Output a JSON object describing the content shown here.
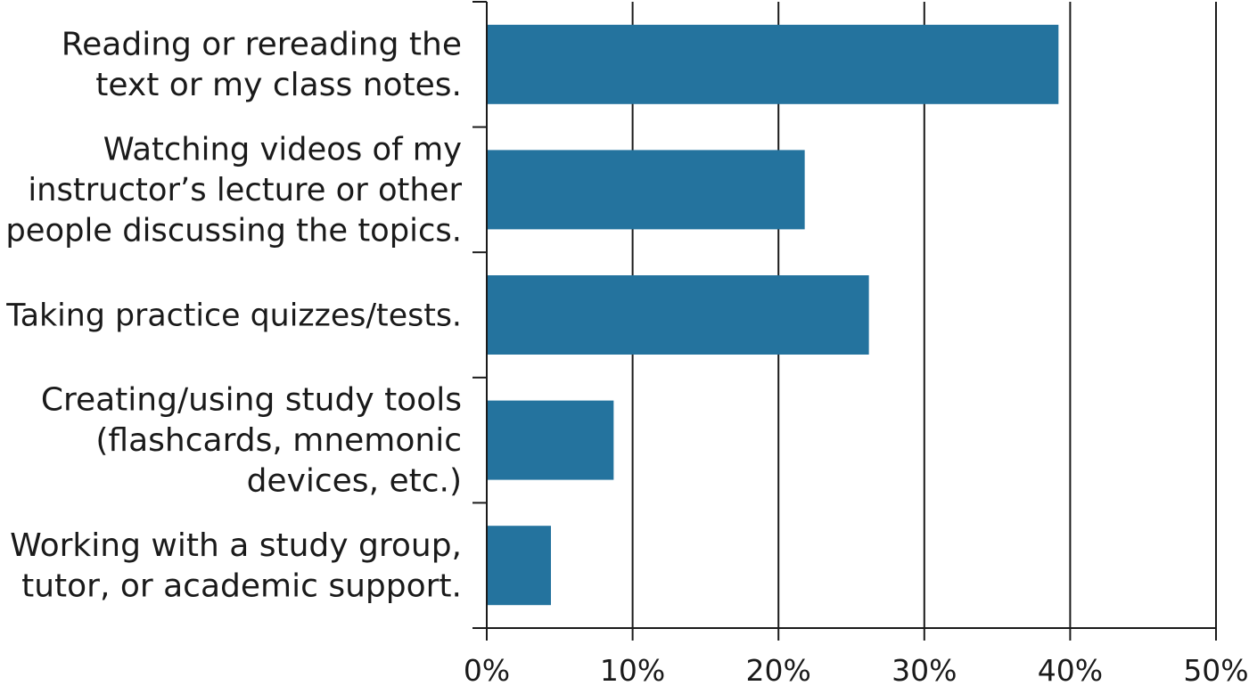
{
  "chart_data": {
    "type": "bar",
    "orientation": "horizontal",
    "title": "",
    "xlabel": "",
    "ylabel": "",
    "categories": [
      [
        "Reading or rereading the",
        "text or my class notes."
      ],
      [
        "Watching videos of my",
        "instructor’s lecture or other",
        "people discussing the topics."
      ],
      [
        "Taking practice quizzes/tests."
      ],
      [
        "Creating/using study tools",
        "(flashcards, mnemonic",
        "devices, etc.)"
      ],
      [
        "Working with a study group,",
        "tutor, or academic support."
      ]
    ],
    "values": [
      39.2,
      21.8,
      26.2,
      8.7,
      4.4
    ],
    "xlim": [
      0,
      50
    ],
    "xticks": [
      0,
      10,
      20,
      30,
      40,
      50
    ],
    "xtick_labels": [
      "0%",
      "10%",
      "20%",
      "30%",
      "40%",
      "50%"
    ],
    "grid": "vertical",
    "bar_color": "#24739e",
    "grid_color": "#1a1a1a"
  }
}
